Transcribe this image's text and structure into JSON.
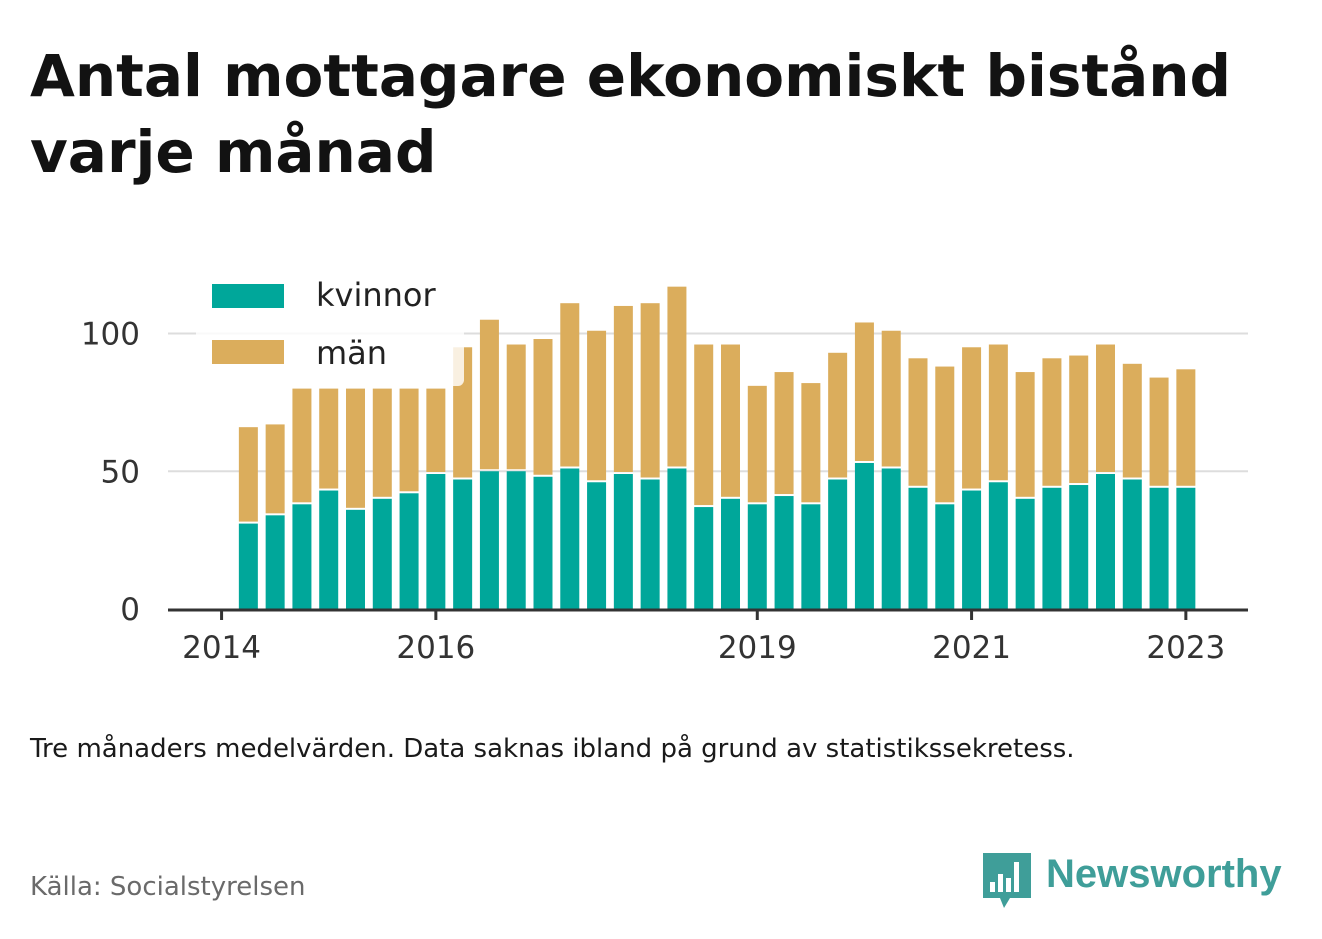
{
  "title": "Antal mottagare ekonomiskt bistånd varje månad",
  "note": "Tre månaders medelvärden. Data saknas ibland på grund av statistikssekretess.",
  "source": "Källa: Socialstyrelsen",
  "logo": {
    "text": "Newsworthy",
    "icon": "newsworthy-bar-chart-icon"
  },
  "colors": {
    "kvinnor": "#00a79a",
    "man": "#dbad5c",
    "grid": "#dddddd",
    "axis": "#333333"
  },
  "chart_data": {
    "type": "bar",
    "stacked": true,
    "y_ticks": [
      0,
      50,
      100
    ],
    "ylim": [
      0,
      120
    ],
    "xlim": [
      2013.5,
      2023.58
    ],
    "x_ticks": [
      "2014",
      "2016",
      "2019",
      "2021",
      "2023"
    ],
    "grid": true,
    "legend": {
      "position": "top-left",
      "entries": [
        "kvinnor",
        "män"
      ]
    },
    "x": [
      2014.25,
      2014.5,
      2014.75,
      2015.0,
      2015.25,
      2015.5,
      2015.75,
      2016.0,
      2016.25,
      2016.5,
      2016.75,
      2017.0,
      2017.25,
      2017.5,
      2017.75,
      2018.0,
      2018.25,
      2018.5,
      2018.75,
      2019.0,
      2019.25,
      2019.5,
      2019.75,
      2020.0,
      2020.25,
      2020.5,
      2020.75,
      2021.0,
      2021.25,
      2021.5,
      2021.75,
      2022.0,
      2022.25,
      2022.5,
      2022.75,
      2023.0
    ],
    "series": [
      {
        "name": "kvinnor",
        "values": [
          31,
          34,
          38,
          43,
          36,
          40,
          42,
          49,
          47,
          50,
          50,
          48,
          51,
          46,
          49,
          47,
          51,
          37,
          40,
          38,
          41,
          38,
          47,
          53,
          51,
          44,
          38,
          43,
          46,
          40,
          44,
          45,
          49,
          47,
          44,
          44
        ]
      },
      {
        "name": "män",
        "values": [
          35,
          33,
          42,
          37,
          44,
          40,
          38,
          31,
          48,
          55,
          46,
          50,
          60,
          55,
          61,
          64,
          66,
          59,
          56,
          43,
          45,
          44,
          46,
          51,
          50,
          47,
          50,
          52,
          50,
          46,
          47,
          47,
          47,
          42,
          40,
          43
        ]
      }
    ]
  }
}
